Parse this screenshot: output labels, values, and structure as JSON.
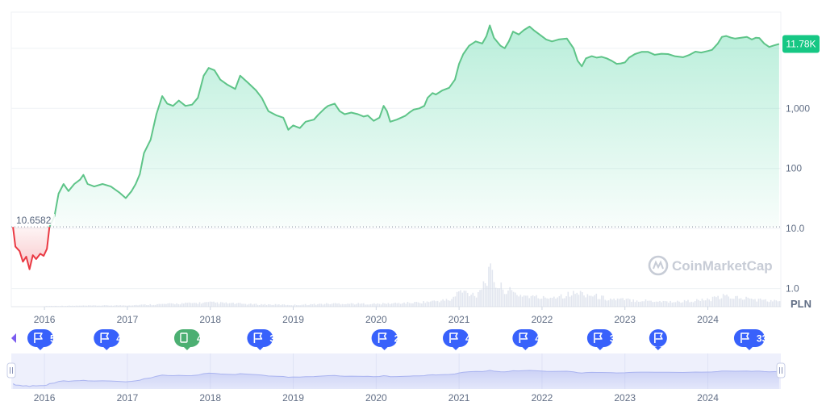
{
  "chart_data": {
    "type": "line",
    "scale": "log",
    "currency": "PLN",
    "current_price_label": "11.78K",
    "reference_value": 10.6582,
    "reference_label": "10.6582",
    "ylim": [
      0.5,
      40000
    ],
    "y_ticks": [
      {
        "value": 1,
        "label": "1.0"
      },
      {
        "value": 10,
        "label": "10.0"
      },
      {
        "value": 100,
        "label": "100"
      },
      {
        "value": 1000,
        "label": "1,000"
      }
    ],
    "x_ticks": [
      "2016",
      "2017",
      "2018",
      "2019",
      "2020",
      "2021",
      "2022",
      "2023",
      "2024"
    ],
    "x_range": [
      2015.6,
      2024.88
    ],
    "series": [
      {
        "values": [
          [
            2015.62,
            10.6
          ],
          [
            2015.65,
            5.0
          ],
          [
            2015.7,
            4.2
          ],
          [
            2015.74,
            2.8
          ],
          [
            2015.78,
            3.4
          ],
          [
            2015.82,
            2.1
          ],
          [
            2015.86,
            3.6
          ],
          [
            2015.9,
            3.1
          ],
          [
            2015.95,
            3.8
          ],
          [
            2015.99,
            3.5
          ],
          [
            2016.03,
            4.6
          ],
          [
            2016.06,
            10.66
          ],
          [
            2016.12,
            16
          ],
          [
            2016.17,
            38
          ],
          [
            2016.23,
            55
          ],
          [
            2016.29,
            42
          ],
          [
            2016.36,
            55
          ],
          [
            2016.43,
            65
          ],
          [
            2016.47,
            78
          ],
          [
            2016.52,
            55
          ],
          [
            2016.6,
            50
          ],
          [
            2016.7,
            55
          ],
          [
            2016.8,
            50
          ],
          [
            2016.9,
            40
          ],
          [
            2016.98,
            32
          ],
          [
            2017.05,
            42
          ],
          [
            2017.1,
            55
          ],
          [
            2017.15,
            80
          ],
          [
            2017.2,
            180
          ],
          [
            2017.28,
            300
          ],
          [
            2017.35,
            800
          ],
          [
            2017.42,
            1600
          ],
          [
            2017.48,
            1200
          ],
          [
            2017.55,
            1100
          ],
          [
            2017.62,
            1350
          ],
          [
            2017.7,
            1100
          ],
          [
            2017.78,
            1150
          ],
          [
            2017.85,
            1500
          ],
          [
            2017.92,
            3500
          ],
          [
            2017.98,
            4700
          ],
          [
            2018.05,
            4300
          ],
          [
            2018.12,
            3000
          ],
          [
            2018.2,
            2500
          ],
          [
            2018.3,
            2100
          ],
          [
            2018.36,
            3500
          ],
          [
            2018.45,
            2700
          ],
          [
            2018.55,
            2000
          ],
          [
            2018.62,
            1500
          ],
          [
            2018.7,
            900
          ],
          [
            2018.8,
            760
          ],
          [
            2018.88,
            700
          ],
          [
            2018.94,
            440
          ],
          [
            2019.0,
            520
          ],
          [
            2019.08,
            470
          ],
          [
            2019.15,
            600
          ],
          [
            2019.25,
            650
          ],
          [
            2019.3,
            780
          ],
          [
            2019.38,
            1000
          ],
          [
            2019.42,
            1100
          ],
          [
            2019.5,
            1200
          ],
          [
            2019.56,
            900
          ],
          [
            2019.62,
            800
          ],
          [
            2019.7,
            850
          ],
          [
            2019.78,
            800
          ],
          [
            2019.85,
            730
          ],
          [
            2019.9,
            760
          ],
          [
            2019.97,
            620
          ],
          [
            2020.04,
            700
          ],
          [
            2020.09,
            1100
          ],
          [
            2020.13,
            900
          ],
          [
            2020.17,
            600
          ],
          [
            2020.25,
            650
          ],
          [
            2020.35,
            750
          ],
          [
            2020.4,
            850
          ],
          [
            2020.45,
            950
          ],
          [
            2020.52,
            1000
          ],
          [
            2020.58,
            1100
          ],
          [
            2020.62,
            1500
          ],
          [
            2020.68,
            1800
          ],
          [
            2020.72,
            1700
          ],
          [
            2020.8,
            2000
          ],
          [
            2020.88,
            2200
          ],
          [
            2020.95,
            3000
          ],
          [
            2021.0,
            5500
          ],
          [
            2021.05,
            8000
          ],
          [
            2021.12,
            11000
          ],
          [
            2021.2,
            13000
          ],
          [
            2021.28,
            12000
          ],
          [
            2021.33,
            16000
          ],
          [
            2021.37,
            24000
          ],
          [
            2021.42,
            15000
          ],
          [
            2021.5,
            11000
          ],
          [
            2021.55,
            10000
          ],
          [
            2021.6,
            13000
          ],
          [
            2021.65,
            19000
          ],
          [
            2021.72,
            17000
          ],
          [
            2021.78,
            20000
          ],
          [
            2021.85,
            23000
          ],
          [
            2021.9,
            20000
          ],
          [
            2021.97,
            17000
          ],
          [
            2022.05,
            14000
          ],
          [
            2022.12,
            13000
          ],
          [
            2022.2,
            14000
          ],
          [
            2022.3,
            14500
          ],
          [
            2022.38,
            10000
          ],
          [
            2022.43,
            6200
          ],
          [
            2022.48,
            5000
          ],
          [
            2022.53,
            6800
          ],
          [
            2022.6,
            7400
          ],
          [
            2022.66,
            7000
          ],
          [
            2022.72,
            7200
          ],
          [
            2022.78,
            6800
          ],
          [
            2022.84,
            6200
          ],
          [
            2022.9,
            5500
          ],
          [
            2022.95,
            5600
          ],
          [
            2023.0,
            5800
          ],
          [
            2023.05,
            7000
          ],
          [
            2023.12,
            8000
          ],
          [
            2023.2,
            8700
          ],
          [
            2023.28,
            8700
          ],
          [
            2023.36,
            7800
          ],
          [
            2023.44,
            8100
          ],
          [
            2023.52,
            8000
          ],
          [
            2023.6,
            7400
          ],
          [
            2023.7,
            7100
          ],
          [
            2023.78,
            7800
          ],
          [
            2023.85,
            8800
          ],
          [
            2023.92,
            8500
          ],
          [
            2024.0,
            9000
          ],
          [
            2024.05,
            9400
          ],
          [
            2024.12,
            12000
          ],
          [
            2024.17,
            15500
          ],
          [
            2024.22,
            16000
          ],
          [
            2024.28,
            15000
          ],
          [
            2024.33,
            14500
          ],
          [
            2024.4,
            15000
          ],
          [
            2024.47,
            15500
          ],
          [
            2024.53,
            14000
          ],
          [
            2024.58,
            15000
          ],
          [
            2024.62,
            14800
          ],
          [
            2024.68,
            12000
          ],
          [
            2024.74,
            10500
          ],
          [
            2024.8,
            11200
          ],
          [
            2024.86,
            11780
          ]
        ]
      }
    ],
    "volume": [
      [
        2016.0,
        0.02
      ],
      [
        2016.5,
        0.03
      ],
      [
        2017.0,
        0.04
      ],
      [
        2017.5,
        0.08
      ],
      [
        2018.0,
        0.12
      ],
      [
        2018.5,
        0.07
      ],
      [
        2019.0,
        0.05
      ],
      [
        2019.5,
        0.09
      ],
      [
        2020.0,
        0.08
      ],
      [
        2020.5,
        0.12
      ],
      [
        2020.9,
        0.2
      ],
      [
        2021.0,
        0.45
      ],
      [
        2021.2,
        0.35
      ],
      [
        2021.35,
        0.9
      ],
      [
        2021.37,
        1.0
      ],
      [
        2021.45,
        0.6
      ],
      [
        2021.7,
        0.35
      ],
      [
        2022.0,
        0.25
      ],
      [
        2022.45,
        0.4
      ],
      [
        2022.8,
        0.22
      ],
      [
        2023.2,
        0.18
      ],
      [
        2023.6,
        0.14
      ],
      [
        2024.0,
        0.2
      ],
      [
        2024.2,
        0.3
      ],
      [
        2024.6,
        0.2
      ],
      [
        2024.86,
        0.15
      ]
    ]
  },
  "watermark": "CoinMarketCap",
  "currency_label": "PLN",
  "markers": [
    {
      "year": 2015.95,
      "label": "5",
      "kind": "flag"
    },
    {
      "year": 2016.75,
      "label": "4",
      "kind": "flag"
    },
    {
      "year": 2017.72,
      "label": "4",
      "kind": "doc"
    },
    {
      "year": 2018.6,
      "label": "3",
      "kind": "flag"
    },
    {
      "year": 2020.1,
      "label": "2",
      "kind": "flag"
    },
    {
      "year": 2020.96,
      "label": "4",
      "kind": "flag"
    },
    {
      "year": 2021.8,
      "label": "4",
      "kind": "flag"
    },
    {
      "year": 2022.7,
      "label": "3",
      "kind": "flag"
    },
    {
      "year": 2023.4,
      "label": "",
      "kind": "flag"
    },
    {
      "year": 2024.5,
      "label": "33",
      "kind": "flag"
    }
  ],
  "navigator_ticks": [
    "2016",
    "2017",
    "2018",
    "2019",
    "2020",
    "2021",
    "2022",
    "2023",
    "2024"
  ],
  "colors": {
    "up": "#16c784",
    "up_line": "#5ec488",
    "down": "#ea3943",
    "marker": "#3861fb",
    "marker_doc": "#4caf72",
    "navigator_bg": "#eef0fc",
    "navigator_line": "#aab4f0"
  }
}
